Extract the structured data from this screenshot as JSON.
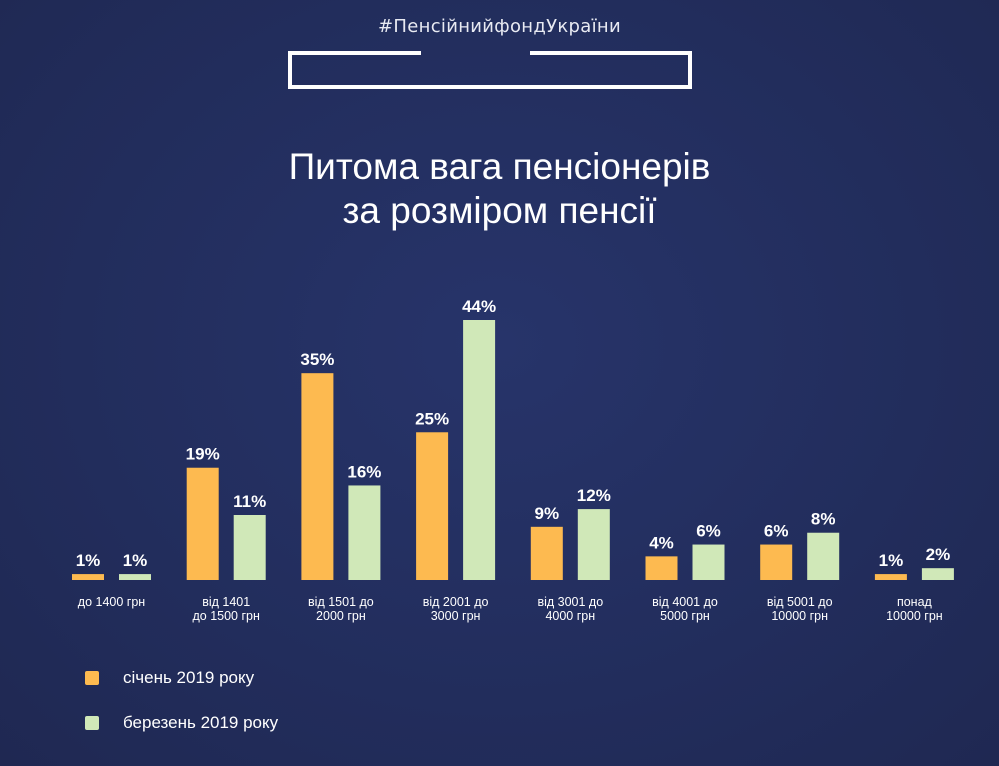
{
  "header": {
    "hashtag": "#ПенсійнийфондУкраїни"
  },
  "chart_data": {
    "type": "bar",
    "title": "Питома вага пенсіонерів за розміром пенсії",
    "title_lines": [
      "Питома вага пенсіонерів",
      "за розміром пенсії"
    ],
    "categories": [
      [
        "до 1400 грн"
      ],
      [
        "від 1401",
        "до 1500 грн"
      ],
      [
        "від 1501 до",
        "2000 грн"
      ],
      [
        "від 2001 до",
        "3000 грн"
      ],
      [
        "від 3001 до",
        "4000 грн"
      ],
      [
        "від 4001 до",
        "5000 грн"
      ],
      [
        "від 5001 до",
        "10000 грн"
      ],
      [
        "понад",
        "10000 грн"
      ]
    ],
    "series": [
      {
        "name": "січень 2019 року",
        "color": "#FDBA50",
        "values": [
          1,
          19,
          35,
          25,
          9,
          4,
          6,
          1
        ]
      },
      {
        "name": "березень 2019 року",
        "color": "#D0E8B8",
        "values": [
          1,
          11,
          16,
          44,
          12,
          6,
          8,
          2
        ]
      }
    ],
    "value_suffix": "%",
    "xlabel": "",
    "ylabel": "",
    "ylim": [
      0,
      44
    ],
    "grid": false,
    "legend": "bottom-left"
  }
}
